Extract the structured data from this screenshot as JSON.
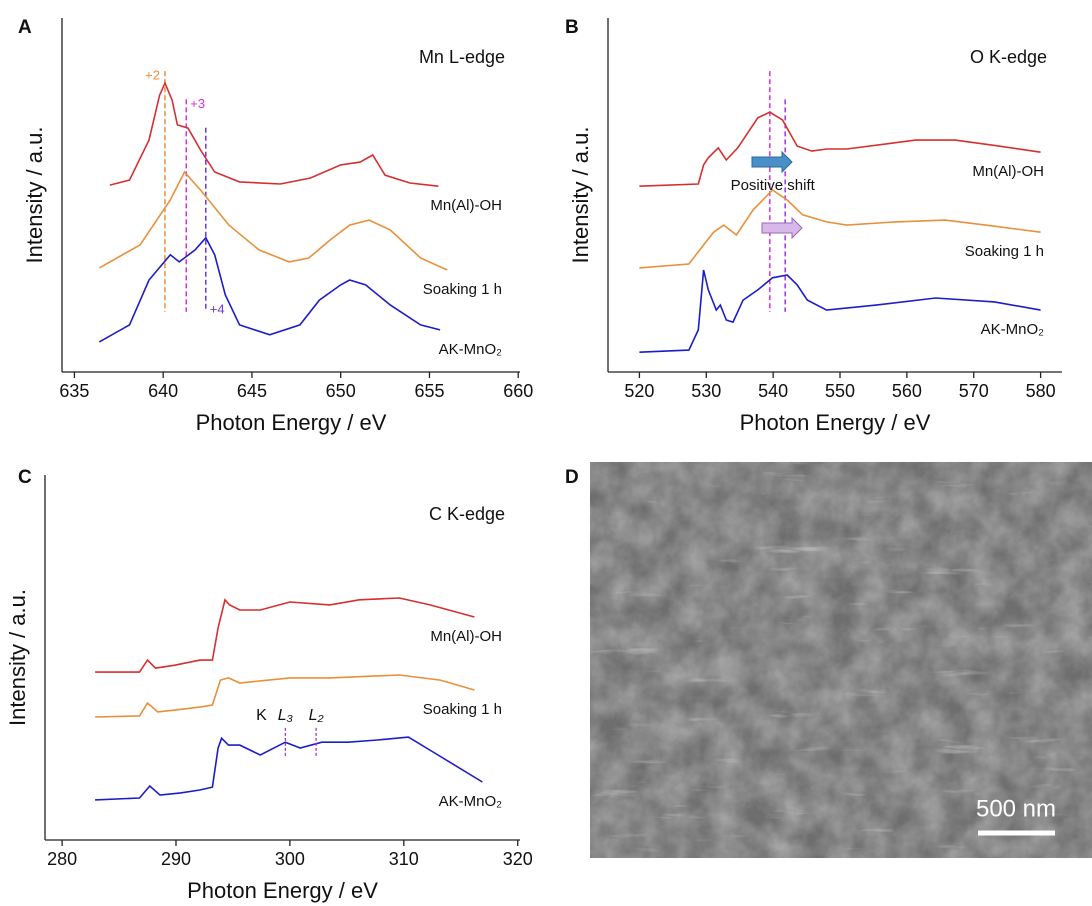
{
  "chart_data": [
    {
      "type": "line",
      "panel": "A",
      "title": "Mn L-edge",
      "xlabel": "Photon Energy / eV",
      "ylabel": "Intensity / a.u.",
      "xlim": [
        634.3,
        660.1
      ],
      "xticks": [
        635,
        640,
        645,
        650,
        655,
        660
      ],
      "ylim": [
        0,
        10
      ],
      "series": [
        {
          "name": "Mn(Al)-OH",
          "color": "#d62f2f",
          "x": [
            637.0,
            638.1,
            639.2,
            639.8,
            640.1,
            640.5,
            640.8,
            641.4,
            642.1,
            642.9,
            644.3,
            646.6,
            648.3,
            650.0,
            651.1,
            651.8,
            652.5,
            653.9,
            655.5
          ],
          "values": [
            5.28,
            5.42,
            6.55,
            7.82,
            8.16,
            7.68,
            6.98,
            6.89,
            6.27,
            5.65,
            5.37,
            5.31,
            5.48,
            5.85,
            5.93,
            6.13,
            5.56,
            5.34,
            5.25
          ]
        },
        {
          "name": "Soaking 1 h",
          "color": "#e8903a",
          "x": [
            636.4,
            638.7,
            640.4,
            641.2,
            642.1,
            643.7,
            645.4,
            647.1,
            648.2,
            649.4,
            650.5,
            651.6,
            652.8,
            654.5,
            656.0
          ],
          "values": [
            2.94,
            3.59,
            4.86,
            5.65,
            5.14,
            4.15,
            3.45,
            3.11,
            3.22,
            3.73,
            4.15,
            4.29,
            4.01,
            3.22,
            2.88
          ]
        },
        {
          "name": "AK-MnO₂",
          "color": "#1d1dc8",
          "x": [
            636.4,
            638.1,
            639.2,
            640.4,
            640.9,
            641.8,
            642.4,
            642.9,
            643.5,
            644.3,
            646.0,
            647.7,
            648.8,
            650.0,
            650.5,
            651.4,
            652.8,
            654.5,
            655.6
          ],
          "values": [
            0.85,
            1.33,
            2.6,
            3.31,
            3.11,
            3.45,
            3.79,
            3.31,
            2.18,
            1.33,
            1.05,
            1.33,
            2.03,
            2.46,
            2.6,
            2.46,
            1.89,
            1.33,
            1.19
          ]
        }
      ],
      "vlines": [
        {
          "x": 640.1,
          "color": "#e8903a",
          "label": "+2"
        },
        {
          "x": 641.3,
          "color": "#d633d6",
          "label": "+3"
        },
        {
          "x": 642.4,
          "color": "#6a3ad6",
          "label": "+4"
        }
      ]
    },
    {
      "type": "line",
      "panel": "B",
      "title": "O K-edge",
      "xlabel": "Photon Energy / eV",
      "ylabel": "Intensity / a.u.",
      "xlim": [
        515.3,
        583.2
      ],
      "xticks": [
        520,
        530,
        540,
        550,
        560,
        570,
        580
      ],
      "ylim": [
        0,
        10
      ],
      "series": [
        {
          "name": "Mn(Al)-OH",
          "color": "#d62f2f",
          "x": [
            520.0,
            528.8,
            529.6,
            530.3,
            531.8,
            533.0,
            534.7,
            537.7,
            539.5,
            541.4,
            543.6,
            545.8,
            548.0,
            551.0,
            561.3,
            567.2,
            573.1,
            580.0
          ],
          "values": [
            5.25,
            5.31,
            5.85,
            6.05,
            6.33,
            5.99,
            6.33,
            7.18,
            7.34,
            7.12,
            6.38,
            6.24,
            6.3,
            6.3,
            6.55,
            6.55,
            6.4,
            6.21
          ]
        },
        {
          "name": "Soaking 1 h",
          "color": "#e8903a",
          "x": [
            520.0,
            527.4,
            529.6,
            531.1,
            532.6,
            534.5,
            537.0,
            539.9,
            542.1,
            544.4,
            548.0,
            551.0,
            558.3,
            565.7,
            573.1,
            580.0
          ],
          "values": [
            2.94,
            3.05,
            3.59,
            3.95,
            4.15,
            3.87,
            4.58,
            5.14,
            4.86,
            4.44,
            4.24,
            4.15,
            4.24,
            4.29,
            4.12,
            3.95
          ]
        },
        {
          "name": "AK-MnO₂",
          "color": "#1d1dc8",
          "x": [
            520.0,
            527.4,
            528.8,
            529.6,
            530.3,
            531.5,
            532.1,
            533.0,
            534.0,
            535.5,
            537.7,
            539.9,
            542.1,
            543.6,
            545.1,
            548.0,
            555.4,
            564.3,
            573.1,
            580.0
          ],
          "values": [
            0.56,
            0.62,
            1.19,
            2.88,
            2.32,
            1.75,
            1.89,
            1.47,
            1.41,
            2.03,
            2.32,
            2.66,
            2.74,
            2.46,
            2.03,
            1.75,
            1.89,
            2.09,
            1.98,
            1.75
          ]
        }
      ],
      "vlines": [
        {
          "x": 539.5,
          "color": "#d633d6"
        },
        {
          "x": 541.8,
          "color": "#9a3ad6"
        }
      ],
      "note": "Positive shift"
    },
    {
      "type": "line",
      "panel": "C",
      "title": "C K-edge",
      "xlabel": "Photon Energy / eV",
      "ylabel": "Intensity / a.u.",
      "xlim": [
        278.5,
        320.2
      ],
      "xticks": [
        280,
        290,
        300,
        310,
        320
      ],
      "ylim": [
        0,
        10
      ],
      "series": [
        {
          "name": "Mn(Al)-OH",
          "color": "#d62f2f",
          "x": [
            282.9,
            286.8,
            287.5,
            288.2,
            289.9,
            292.1,
            293.2,
            293.7,
            294.3,
            294.7,
            295.6,
            297.4,
            300.0,
            303.5,
            306.1,
            309.6,
            312.3,
            316.2
          ],
          "values": [
            4.6,
            4.6,
            4.93,
            4.71,
            4.79,
            4.93,
            4.93,
            5.81,
            6.58,
            6.44,
            6.3,
            6.3,
            6.52,
            6.44,
            6.58,
            6.63,
            6.44,
            6.11
          ]
        },
        {
          "name": "Soaking 1 h",
          "color": "#e8903a",
          "x": [
            282.9,
            286.8,
            287.5,
            288.4,
            289.9,
            292.1,
            293.2,
            293.9,
            294.6,
            295.6,
            300.0,
            303.5,
            309.6,
            313.2,
            316.2
          ],
          "values": [
            3.37,
            3.4,
            3.75,
            3.51,
            3.56,
            3.64,
            3.7,
            4.38,
            4.44,
            4.3,
            4.44,
            4.44,
            4.52,
            4.38,
            4.11
          ]
        },
        {
          "name": "AK-MnO₂",
          "color": "#1d1dc8",
          "x": [
            282.9,
            286.8,
            287.7,
            288.6,
            290.4,
            292.1,
            293.2,
            293.7,
            294.0,
            294.6,
            295.6,
            297.4,
            299.6,
            300.9,
            302.8,
            305.1,
            307.7,
            310.4,
            313.0,
            316.9
          ],
          "values": [
            1.1,
            1.15,
            1.48,
            1.23,
            1.29,
            1.37,
            1.45,
            2.52,
            2.79,
            2.6,
            2.6,
            2.33,
            2.68,
            2.52,
            2.68,
            2.68,
            2.74,
            2.82,
            2.33,
            1.59
          ]
        }
      ],
      "annotations": [
        {
          "text": "K",
          "x": 297.5
        },
        {
          "text": "L₃",
          "x": 299.6,
          "line": true
        },
        {
          "text": "L₂",
          "x": 302.3,
          "line": true
        }
      ]
    }
  ],
  "image_panel": {
    "panel": "D",
    "scale_bar": "500 nm"
  }
}
